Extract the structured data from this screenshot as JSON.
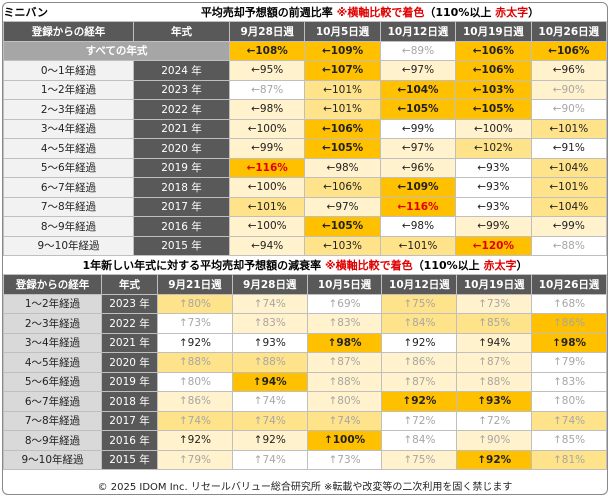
{
  "top": {
    "category": "ミニバン",
    "title": [
      "平均売却予想額の前週比率 ",
      "※横軸比較で着色",
      "（110%以上 ",
      "赤太字",
      "）"
    ],
    "headers": [
      "登録からの経年",
      "年式",
      "9月28日週",
      "10月5日週",
      "10月12日週",
      "10月19日週",
      "10月26日週"
    ],
    "all_row": {
      "label": "すべての年式",
      "cells": [
        "←108%",
        "←109%",
        "←89%",
        "←106%",
        "←106%"
      ],
      "styles": [
        "3d",
        "3d",
        "0g",
        "3d",
        "3d"
      ]
    },
    "rows": [
      {
        "age": "0～1年経過",
        "year": "2024 年",
        "cells": [
          "←95%",
          "←107%",
          "←97%",
          "←106%",
          "←96%"
        ],
        "styles": [
          "1d",
          "3d",
          "1d",
          "3d",
          "1d"
        ]
      },
      {
        "age": "1～2年経過",
        "year": "2023 年",
        "cells": [
          "←87%",
          "←101%",
          "←104%",
          "←103%",
          "←90%"
        ],
        "styles": [
          "0g",
          "2d",
          "3d",
          "3d",
          "1g"
        ]
      },
      {
        "age": "2～3年経過",
        "year": "2022 年",
        "cells": [
          "←98%",
          "←101%",
          "←105%",
          "←105%",
          "←90%"
        ],
        "styles": [
          "1d",
          "2d",
          "3d",
          "3d",
          "0g"
        ]
      },
      {
        "age": "3～4年経過",
        "year": "2021 年",
        "cells": [
          "←100%",
          "←106%",
          "←99%",
          "←100%",
          "←101%"
        ],
        "styles": [
          "1d",
          "3d",
          "0d",
          "1d",
          "2d"
        ]
      },
      {
        "age": "4～5年経過",
        "year": "2020 年",
        "cells": [
          "←99%",
          "←105%",
          "←97%",
          "←102%",
          "←91%"
        ],
        "styles": [
          "1d",
          "3d",
          "1d",
          "2d",
          "0d"
        ]
      },
      {
        "age": "5～6年経過",
        "year": "2019 年",
        "cells": [
          "←116%",
          "←98%",
          "←96%",
          "←93%",
          "←104%"
        ],
        "styles": [
          "3r",
          "1d",
          "1d",
          "0d",
          "2d"
        ]
      },
      {
        "age": "6～7年経過",
        "year": "2018 年",
        "cells": [
          "←100%",
          "←106%",
          "←109%",
          "←93%",
          "←101%"
        ],
        "styles": [
          "1d",
          "2d",
          "3d",
          "0d",
          "2d"
        ]
      },
      {
        "age": "7～8年経過",
        "year": "2017 年",
        "cells": [
          "←101%",
          "←97%",
          "←116%",
          "←93%",
          "←104%"
        ],
        "styles": [
          "2d",
          "1d",
          "3r",
          "0d",
          "2d"
        ]
      },
      {
        "age": "8～9年経過",
        "year": "2016 年",
        "cells": [
          "←100%",
          "←105%",
          "←98%",
          "←99%",
          "←99%"
        ],
        "styles": [
          "1d",
          "3d",
          "0d",
          "1d",
          "1d"
        ]
      },
      {
        "age": "9～10年経過",
        "year": "2015 年",
        "cells": [
          "←94%",
          "←103%",
          "←101%",
          "←120%",
          "←88%"
        ],
        "styles": [
          "1d",
          "2d",
          "2d",
          "3r",
          "0g"
        ]
      }
    ]
  },
  "bottom": {
    "title": [
      "1年新しい年式に対する平均売却予想額の減衰率 ",
      "※横軸比較で着色",
      "（110%以上 ",
      "赤太字",
      "）"
    ],
    "headers": [
      "登録からの経年",
      "年式",
      "9月21日週",
      "9月28日週",
      "10月5日週",
      "10月12日週",
      "10月19日週",
      "10月26日週"
    ],
    "rows": [
      {
        "age": "1～2年経過",
        "year": "2023 年",
        "cells": [
          "↑80%",
          "↑74%",
          "↑69%",
          "↑75%",
          "↑73%",
          "↑68%"
        ],
        "styles": [
          "2g",
          "1g",
          "0g",
          "2g",
          "1g",
          "0g"
        ]
      },
      {
        "age": "2～3年経過",
        "year": "2022 年",
        "cells": [
          "↑73%",
          "↑83%",
          "↑83%",
          "↑84%",
          "↑85%",
          "↑86%"
        ],
        "styles": [
          "0g",
          "1g",
          "1g",
          "2g",
          "2g",
          "3g"
        ]
      },
      {
        "age": "3～4年経過",
        "year": "2021 年",
        "cells": [
          "↑92%",
          "↑93%",
          "↑98%",
          "↑92%",
          "↑94%",
          "↑98%"
        ],
        "styles": [
          "0d",
          "0d",
          "3d",
          "0d",
          "1d",
          "3d"
        ]
      },
      {
        "age": "4～5年経過",
        "year": "2020 年",
        "cells": [
          "↑88%",
          "↑88%",
          "↑87%",
          "↑86%",
          "↑87%",
          "↑79%"
        ],
        "styles": [
          "2g",
          "2g",
          "1g",
          "1g",
          "1g",
          "0g"
        ]
      },
      {
        "age": "5～6年経過",
        "year": "2019 年",
        "cells": [
          "↑80%",
          "↑94%",
          "↑88%",
          "↑87%",
          "↑88%",
          "↑83%"
        ],
        "styles": [
          "0g",
          "3d",
          "1g",
          "1g",
          "1g",
          "0g"
        ]
      },
      {
        "age": "6～7年経過",
        "year": "2018 年",
        "cells": [
          "↑86%",
          "↑74%",
          "↑80%",
          "↑92%",
          "↑93%",
          "↑80%"
        ],
        "styles": [
          "1g",
          "0g",
          "1g",
          "3d",
          "3d",
          "0g"
        ]
      },
      {
        "age": "7～8年経過",
        "year": "2017 年",
        "cells": [
          "↑74%",
          "↑74%",
          "↑74%",
          "↑72%",
          "↑72%",
          "↑74%"
        ],
        "styles": [
          "2g",
          "2g",
          "2g",
          "0g",
          "0g",
          "2g"
        ]
      },
      {
        "age": "8～9年経過",
        "year": "2016 年",
        "cells": [
          "↑92%",
          "↑92%",
          "↑100%",
          "↑84%",
          "↑90%",
          "↑85%"
        ],
        "styles": [
          "1d",
          "1d",
          "3d",
          "0g",
          "1g",
          "0g"
        ]
      },
      {
        "age": "9～10年経過",
        "year": "2015 年",
        "cells": [
          "↑79%",
          "↑74%",
          "↑73%",
          "↑75%",
          "↑92%",
          "↑81%"
        ],
        "styles": [
          "1g",
          "0g",
          "0g",
          "1g",
          "3d",
          "2g"
        ]
      }
    ]
  },
  "footer": "© 2025 IDOM Inc. リセールバリュー総合研究所 ※転載や改変等の二次利用を固く禁じます"
}
